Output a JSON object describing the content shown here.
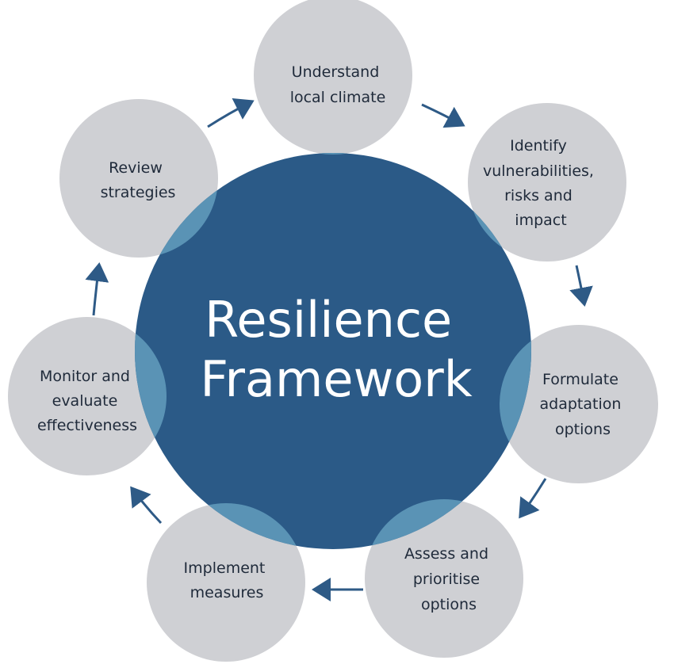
{
  "center": {
    "lines": [
      "Resilience",
      "Framework"
    ]
  },
  "steps": [
    {
      "lines": [
        "Understand",
        "local climate"
      ]
    },
    {
      "lines": [
        "Identify",
        "vulnerabilities,",
        "risks and",
        "impact"
      ]
    },
    {
      "lines": [
        "Formulate",
        "adaptation",
        "options"
      ]
    },
    {
      "lines": [
        "Assess and",
        "prioritise",
        "options"
      ]
    },
    {
      "lines": [
        "Implement",
        "measures"
      ]
    },
    {
      "lines": [
        "Monitor and",
        "evaluate",
        "effectiveness"
      ]
    },
    {
      "lines": [
        "Review",
        "strategies"
      ]
    }
  ],
  "colors": {
    "step_circle": "#cfd0d4",
    "center_circle": "#2b5a87",
    "overlap": "#5a93b5",
    "arrow": "#2e5a86",
    "step_text": "#1f2a3a",
    "center_text": "#ffffff"
  }
}
